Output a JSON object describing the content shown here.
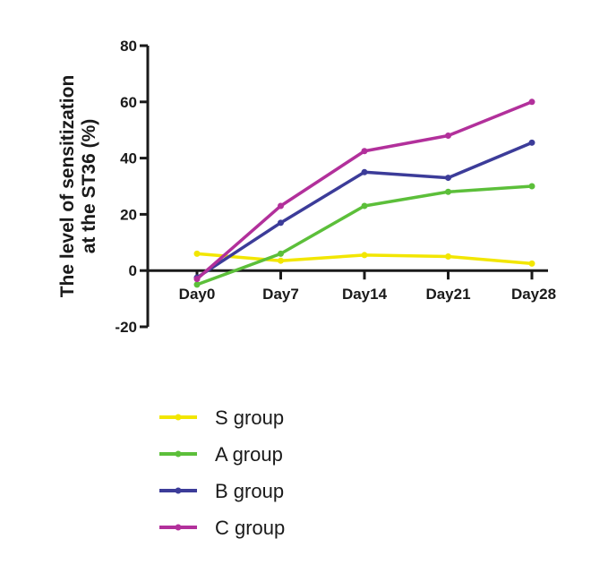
{
  "chart_data": {
    "type": "line",
    "title": "",
    "xlabel": "",
    "ylabel_lines": [
      "The level of sensitization",
      "at the ST36 (%)"
    ],
    "categories": [
      "Day0",
      "Day7",
      "Day14",
      "Day21",
      "Day28"
    ],
    "ylim": [
      -20,
      80
    ],
    "yticks": [
      -20,
      0,
      20,
      40,
      60,
      80
    ],
    "ytick_labels": [
      "-20",
      "0",
      "20",
      "40",
      "60",
      "80"
    ],
    "grid": false,
    "legend_position": "bottom",
    "series": [
      {
        "name": "S group",
        "color": "#f2e600",
        "values": [
          6,
          3.5,
          5.5,
          5,
          2.5
        ]
      },
      {
        "name": "A group",
        "color": "#5cbf3a",
        "values": [
          -5,
          6,
          23,
          28,
          30
        ]
      },
      {
        "name": "B group",
        "color": "#3c3c99",
        "values": [
          -2.5,
          17,
          35,
          33,
          45.5
        ]
      },
      {
        "name": "C group",
        "color": "#b2309b",
        "values": [
          -3,
          23,
          42.5,
          48,
          60
        ]
      }
    ]
  }
}
